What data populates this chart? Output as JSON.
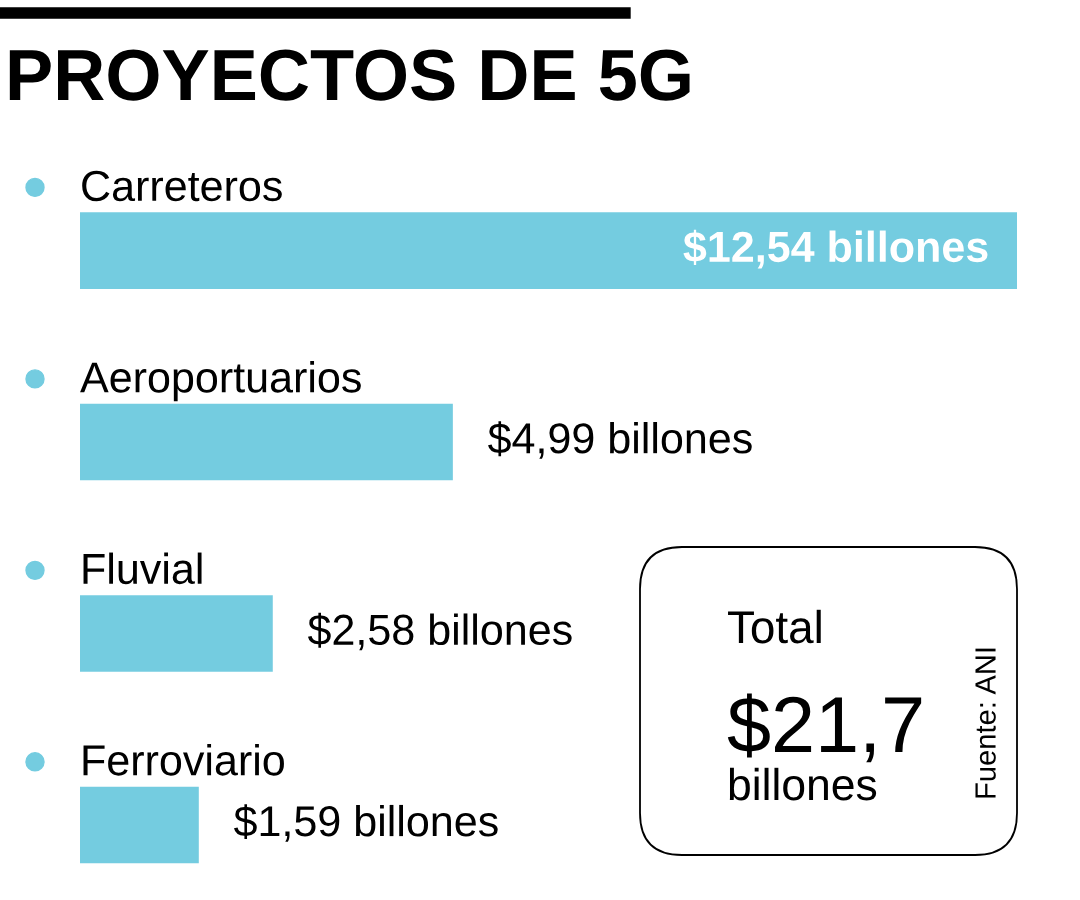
{
  "chart_data": {
    "type": "bar",
    "orientation": "horizontal",
    "title": "PROYECTOS DE 5G",
    "categories": [
      "Carreteros",
      "Aeroportuarios",
      "Fluvial",
      "Ferroviario"
    ],
    "values": [
      12.54,
      4.99,
      2.58,
      1.59
    ],
    "value_labels": [
      "$12,54 billones",
      "$4,99 billones",
      "$2,58 billones",
      "$1,59 billones"
    ],
    "color": "#74cce0",
    "tick_labels": "y",
    "annotations": [
      "Total",
      "$21,7",
      "billones",
      "Fuente: ANI"
    ]
  }
}
